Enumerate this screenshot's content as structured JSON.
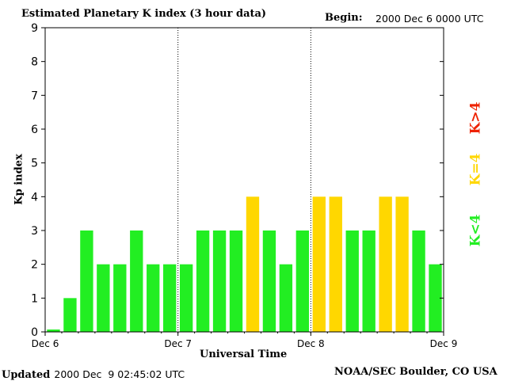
{
  "header": {
    "title": "Estimated Planetary K index (3 hour data)",
    "begin_label": "Begin:",
    "begin_value": "2000 Dec 6 0000 UTC"
  },
  "footer": {
    "updated_label": "Updated",
    "updated_value": "2000 Dec  9 02:45:02 UTC",
    "credit": "NOAA/SEC Boulder, CO USA"
  },
  "legend": {
    "low": "K<4",
    "mid": "K=4",
    "high": "K>4"
  },
  "colors": {
    "low": "#22ee22",
    "mid": "#ffd700",
    "high": "#ee2200"
  },
  "chart_data": {
    "type": "bar",
    "title": "Estimated Planetary K index (3 hour data)",
    "xlabel": "Universal Time",
    "ylabel": "Kp index",
    "ylim": [
      0,
      9
    ],
    "yticks": [
      "0",
      "1",
      "2",
      "3",
      "4",
      "5",
      "6",
      "7",
      "8",
      "9"
    ],
    "xticks": [
      "Dec 6",
      "Dec 7",
      "Dec 8",
      "Dec 9"
    ],
    "bar_interval_hours": 3,
    "values": [
      0,
      1,
      3,
      2,
      2,
      3,
      2,
      2,
      2,
      3,
      3,
      3,
      4,
      3,
      2,
      3,
      4,
      4,
      3,
      3,
      4,
      4,
      3,
      2
    ],
    "day_separators": "dotted vertical lines at Dec 7 and Dec 8",
    "legend_placement": "right, vertical"
  }
}
